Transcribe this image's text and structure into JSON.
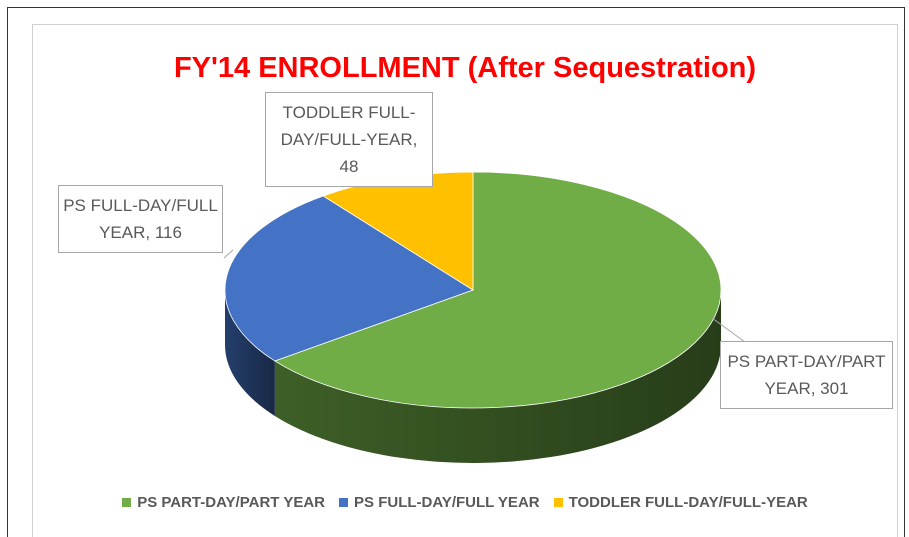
{
  "chart_data": {
    "type": "pie",
    "title": "FY'14 ENROLLMENT (After Sequestration)",
    "categories": [
      "PS PART-DAY/PART YEAR",
      "PS FULL-DAY/FULL YEAR",
      "TODDLER FULL-DAY/FULL-YEAR"
    ],
    "values": [
      301,
      116,
      48
    ],
    "value_labels": [
      "PS PART-DAY/PART YEAR, 301",
      "PS FULL-DAY/FULL YEAR, 116",
      "TODDLER FULL-DAY/FULL-YEAR, 48"
    ],
    "colors": [
      "#70ad47",
      "#4472c4",
      "#ffc000"
    ],
    "legend": "bottom"
  }
}
